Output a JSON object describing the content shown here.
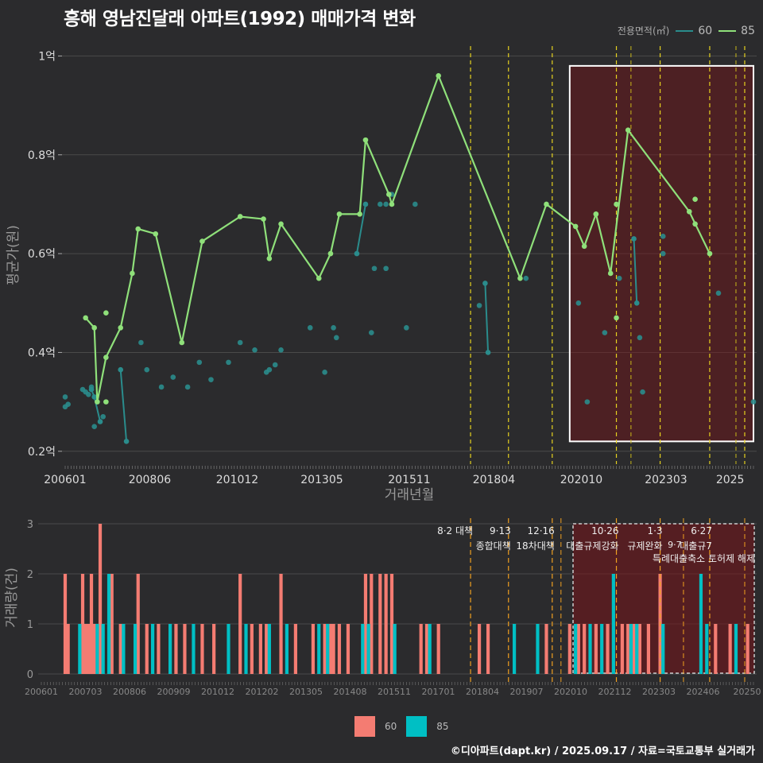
{
  "title": "흥해 영남진달래 아파트(1992) 매매가격 변화",
  "caption": "©디아파트(dapt.kr) / 2025.09.17 / 자료=국토교통부 실거래가",
  "legend_top": {
    "title": "전용면적(㎡)",
    "items": [
      {
        "label": "60",
        "color": "#2a8c8c"
      },
      {
        "label": "85",
        "color": "#8fe07a"
      }
    ]
  },
  "legend_bottom": {
    "items": [
      {
        "label": "60",
        "color": "#f47c72"
      },
      {
        "label": "85",
        "color": "#00bfc4"
      }
    ]
  },
  "chart_data": [
    {
      "type": "line",
      "xlabel": "거래년월",
      "ylabel": "평균가(원)",
      "x_ticks": [
        "200601",
        "200806",
        "201012",
        "201305",
        "201511",
        "201804",
        "202010",
        "202303",
        "2025"
      ],
      "y_ticks": [
        {
          "value": 0.2,
          "label": "0.2억"
        },
        {
          "value": 0.4,
          "label": "0.4억"
        },
        {
          "value": 0.6,
          "label": "0.6억"
        },
        {
          "value": 0.8,
          "label": "0.8억"
        },
        {
          "value": 1.0,
          "label": "1억"
        }
      ],
      "ylim": [
        0.19,
        1.02
      ],
      "policy_lines": [
        "2017-08",
        "2018-09",
        "2019-12",
        "2021-10",
        "2023-01",
        "2024-06",
        "2025-06"
      ],
      "highlight_box": {
        "x": [
          "2020-06",
          "2025-09"
        ],
        "y": [
          0.22,
          0.98
        ]
      },
      "series": [
        {
          "name": "85",
          "color": "#8fe07a",
          "line": [
            [
              "2006-08",
              0.47
            ],
            [
              "2006-11",
              0.45
            ],
            [
              "2006-12",
              0.3
            ],
            [
              "2007-03",
              0.39
            ],
            [
              "2007-08",
              0.45
            ],
            [
              "2007-12",
              0.56
            ],
            [
              "2008-02",
              0.65
            ],
            [
              "2008-08",
              0.64
            ],
            [
              "2009-05",
              0.42
            ],
            [
              "2009-12",
              0.625
            ],
            [
              "2011-01",
              0.675
            ],
            [
              "2011-09",
              0.67
            ],
            [
              "2011-11",
              0.59
            ],
            [
              "2012-03",
              0.66
            ],
            [
              "2013-04",
              0.55
            ],
            [
              "2013-08",
              0.6
            ],
            [
              "2013-11",
              0.68
            ],
            [
              "2014-06",
              0.68
            ],
            [
              "2014-08",
              0.83
            ],
            [
              "2015-04",
              0.72
            ],
            [
              "2015-05",
              0.7
            ],
            [
              "2016-09",
              0.96
            ],
            [
              "2019-01",
              0.55
            ],
            [
              "2019-10",
              0.7
            ],
            [
              "2020-08",
              0.655
            ],
            [
              "2020-11",
              0.615
            ],
            [
              "2021-03",
              0.68
            ],
            [
              "2021-08",
              0.56
            ],
            [
              "2022-02",
              0.85
            ],
            [
              "2023-11",
              0.685
            ],
            [
              "2024-06",
              0.6
            ]
          ],
          "points": [
            [
              "2007-03",
              0.48
            ],
            [
              "2007-03",
              0.3
            ],
            [
              "2021-10",
              0.47
            ],
            [
              "2021-10",
              0.7
            ],
            [
              "2021-03",
              0.68
            ],
            [
              "2024-01",
              0.71
            ],
            [
              "2024-01",
              0.66
            ]
          ]
        },
        {
          "name": "60",
          "color": "#2a8c8c",
          "line_segments": [
            [
              [
                "2007-08",
                0.365
              ],
              [
                "2007-10",
                0.22
              ]
            ],
            [
              [
                "2006-10",
                0.325
              ],
              [
                "2006-11",
                0.31
              ],
              [
                "2007-01",
                0.26
              ]
            ],
            [
              [
                "2014-05",
                0.6
              ],
              [
                "2014-08",
                0.7
              ]
            ],
            [
              [
                "2018-01",
                0.54
              ],
              [
                "2018-02",
                0.4
              ]
            ],
            [
              [
                "2022-04",
                0.63
              ],
              [
                "2022-05",
                0.5
              ]
            ]
          ],
          "points": [
            [
              "2006-01",
              0.31
            ],
            [
              "2006-01",
              0.29
            ],
            [
              "2006-02",
              0.295
            ],
            [
              "2006-07",
              0.325
            ],
            [
              "2006-08",
              0.32
            ],
            [
              "2006-09",
              0.315
            ],
            [
              "2006-10",
              0.33
            ],
            [
              "2006-11",
              0.25
            ],
            [
              "2007-02",
              0.27
            ],
            [
              "2008-03",
              0.42
            ],
            [
              "2008-05",
              0.365
            ],
            [
              "2008-10",
              0.33
            ],
            [
              "2009-02",
              0.35
            ],
            [
              "2009-07",
              0.33
            ],
            [
              "2009-11",
              0.38
            ],
            [
              "2010-03",
              0.345
            ],
            [
              "2010-09",
              0.38
            ],
            [
              "2011-01",
              0.42
            ],
            [
              "2011-06",
              0.405
            ],
            [
              "2011-10",
              0.36
            ],
            [
              "2011-11",
              0.365
            ],
            [
              "2012-01",
              0.375
            ],
            [
              "2012-03",
              0.405
            ],
            [
              "2013-01",
              0.45
            ],
            [
              "2013-06",
              0.36
            ],
            [
              "2013-09",
              0.45
            ],
            [
              "2013-10",
              0.43
            ],
            [
              "2014-10",
              0.44
            ],
            [
              "2014-11",
              0.57
            ],
            [
              "2015-01",
              0.7
            ],
            [
              "2015-03",
              0.57
            ],
            [
              "2015-03",
              0.7
            ],
            [
              "2015-05",
              0.72
            ],
            [
              "2015-10",
              0.45
            ],
            [
              "2016-01",
              0.7
            ],
            [
              "2017-11",
              0.495
            ],
            [
              "2019-03",
              0.55
            ],
            [
              "2020-09",
              0.5
            ],
            [
              "2020-12",
              0.3
            ],
            [
              "2021-06",
              0.44
            ],
            [
              "2021-11",
              0.55
            ],
            [
              "2022-06",
              0.43
            ],
            [
              "2022-07",
              0.32
            ],
            [
              "2023-02",
              0.635
            ],
            [
              "2023-02",
              0.6
            ],
            [
              "2024-09",
              0.52
            ],
            [
              "2025-09",
              0.3
            ]
          ]
        }
      ]
    },
    {
      "type": "bar",
      "ylabel": "거래량(건)",
      "ylim": [
        0,
        3
      ],
      "y_ticks": [
        0,
        1,
        2,
        3
      ],
      "x_ticks": [
        "200601",
        "200703",
        "200806",
        "200909",
        "201012",
        "201202",
        "201305",
        "201408",
        "201511",
        "201701",
        "201804",
        "201907",
        "202010",
        "202112",
        "202303",
        "202406",
        "20250"
      ],
      "policy_events": [
        {
          "date": "2017-08",
          "label1": "8·2 대책",
          "label2": ""
        },
        {
          "date": "2018-09",
          "label1": "9·13",
          "label2": "종합대책"
        },
        {
          "date": "2019-12",
          "label1": "12·16",
          "label2": "18차대책"
        },
        {
          "date": "2021-10",
          "label1": "10·26",
          "label2": "대출규제강화"
        },
        {
          "date": "2023-01",
          "label1": "1·3",
          "label2": "규제완화"
        },
        {
          "date": "2024-06",
          "label1": "6·27",
          "label2": "대출규7"
        }
      ],
      "extra_labels": [
        {
          "date": "2023-01",
          "label": "9·7"
        },
        {
          "date": "2023-01",
          "label": "특례대출축소 토허제 해제"
        }
      ],
      "series": [
        {
          "name": "60",
          "color": "#f47c72",
          "values": [
            [
              "2006-01",
              2
            ],
            [
              "2006-02",
              1
            ],
            [
              "2006-07",
              2
            ],
            [
              "2006-08",
              1
            ],
            [
              "2006-09",
              1
            ],
            [
              "2006-10",
              2
            ],
            [
              "2006-11",
              1
            ],
            [
              "2007-01",
              3
            ],
            [
              "2007-05",
              2
            ],
            [
              "2007-08",
              1
            ],
            [
              "2008-02",
              2
            ],
            [
              "2008-05",
              1
            ],
            [
              "2008-09",
              1
            ],
            [
              "2009-03",
              1
            ],
            [
              "2009-06",
              1
            ],
            [
              "2009-12",
              1
            ],
            [
              "2010-04",
              1
            ],
            [
              "2011-01",
              2
            ],
            [
              "2011-05",
              1
            ],
            [
              "2011-08",
              1
            ],
            [
              "2011-10",
              1
            ],
            [
              "2012-03",
              2
            ],
            [
              "2012-08",
              1
            ],
            [
              "2013-02",
              1
            ],
            [
              "2013-06",
              1
            ],
            [
              "2013-08",
              1
            ],
            [
              "2013-09",
              1
            ],
            [
              "2013-11",
              1
            ],
            [
              "2014-02",
              1
            ],
            [
              "2014-08",
              2
            ],
            [
              "2014-10",
              2
            ],
            [
              "2015-01",
              2
            ],
            [
              "2015-03",
              2
            ],
            [
              "2015-05",
              2
            ],
            [
              "2016-03",
              1
            ],
            [
              "2016-05",
              1
            ],
            [
              "2016-09",
              1
            ],
            [
              "2017-11",
              1
            ],
            [
              "2018-02",
              1
            ],
            [
              "2019-10",
              1
            ],
            [
              "2020-06",
              1
            ],
            [
              "2020-09",
              1
            ],
            [
              "2020-11",
              1
            ],
            [
              "2021-03",
              1
            ],
            [
              "2021-07",
              1
            ],
            [
              "2021-12",
              1
            ],
            [
              "2022-02",
              1
            ],
            [
              "2022-04",
              1
            ],
            [
              "2022-06",
              1
            ],
            [
              "2022-09",
              1
            ],
            [
              "2023-01",
              2
            ],
            [
              "2024-08",
              1
            ],
            [
              "2025-01",
              1
            ],
            [
              "2025-07",
              1
            ]
          ]
        },
        {
          "name": "85",
          "color": "#00bfc4",
          "values": [
            [
              "2006-06",
              1
            ],
            [
              "2006-12",
              1
            ],
            [
              "2007-02",
              1
            ],
            [
              "2007-04",
              2
            ],
            [
              "2007-09",
              1
            ],
            [
              "2008-01",
              1
            ],
            [
              "2008-07",
              1
            ],
            [
              "2009-01",
              1
            ],
            [
              "2009-09",
              1
            ],
            [
              "2010-09",
              1
            ],
            [
              "2011-03",
              1
            ],
            [
              "2011-11",
              1
            ],
            [
              "2012-05",
              1
            ],
            [
              "2013-04",
              1
            ],
            [
              "2013-07",
              1
            ],
            [
              "2014-07",
              1
            ],
            [
              "2014-09",
              1
            ],
            [
              "2015-06",
              1
            ],
            [
              "2016-06",
              1
            ],
            [
              "2018-11",
              1
            ],
            [
              "2019-07",
              1
            ],
            [
              "2020-08",
              1
            ],
            [
              "2021-01",
              1
            ],
            [
              "2021-05",
              1
            ],
            [
              "2021-09",
              2
            ],
            [
              "2022-03",
              1
            ],
            [
              "2022-05",
              1
            ],
            [
              "2023-02",
              1
            ],
            [
              "2024-03",
              2
            ],
            [
              "2024-05",
              1
            ],
            [
              "2025-03",
              1
            ]
          ]
        }
      ]
    }
  ]
}
